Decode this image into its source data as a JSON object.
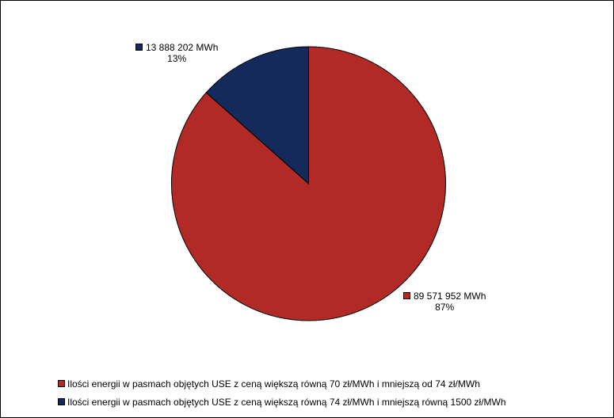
{
  "chart_data": {
    "type": "pie",
    "title": "",
    "slices": [
      {
        "name": "Ilości energii w pasmach objętych USE z ceną większą równą 70 zł/MWh i mniejszą od 74 zł/MWh",
        "value": 89571952,
        "value_label": "89 571 952 MWh",
        "percent_label": "87%",
        "color": "#B22A26"
      },
      {
        "name": "Ilości energii w pasmach objętych USE z ceną większą równą 74 zł/MWh i mniejszą równą 1500 zł/MWh",
        "value": 13888202,
        "value_label": "13 888 202 MWh",
        "percent_label": "13%",
        "color": "#142A5C"
      }
    ],
    "legend_position": "bottom",
    "start_angle": "12 o'clock, counter-clockwise for first slice"
  }
}
